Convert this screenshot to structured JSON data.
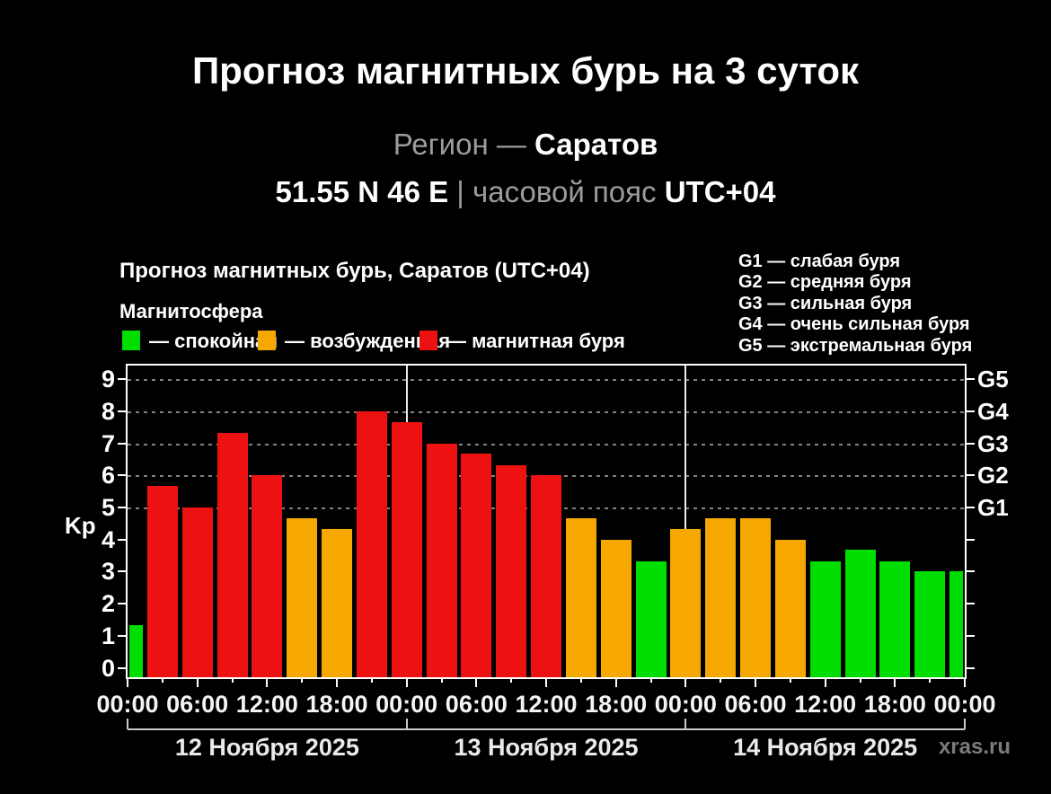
{
  "header": {
    "title": "Прогноз магнитных бурь на 3 суток",
    "region_prefix": "Регион —",
    "region_value": "Саратов",
    "coords": "51.55 N 46 E",
    "pipe": "|",
    "tz_prefix": "часовой пояс",
    "tz_value": "UTC+04"
  },
  "chart": {
    "header": "Прогноз магнитных бурь, Саратов (UTC+04)",
    "magnetosphere_label": "Магнитосфера",
    "legend": [
      {
        "state": "quiet",
        "label": "— спокойная",
        "color": "#00DD00"
      },
      {
        "state": "excited",
        "label": "— возбужденная",
        "color": "#F7A800"
      },
      {
        "state": "storm",
        "label": "— магнитная буря",
        "color": "#EE1111"
      }
    ],
    "storm_scale": [
      {
        "label": "G1 — слабая буря"
      },
      {
        "label": "G2 — средняя буря"
      },
      {
        "label": "G3 — сильная буря"
      },
      {
        "label": "G4 — очень сильная буря"
      },
      {
        "label": "G5 — экстремальная буря"
      }
    ],
    "ylabel": "Kp"
  },
  "chart_data": {
    "type": "bar",
    "title": "Прогноз магнитных бурь, Саратов (UTC+04)",
    "xlabel": "",
    "ylabel": "Kp",
    "ylim": [
      0,
      9
    ],
    "grid": "horizontal dashed at G-levels",
    "legend_position": "top-left",
    "x_hours": [
      0,
      3,
      6,
      9,
      12,
      15,
      18,
      21,
      24,
      27,
      30,
      33,
      36,
      39,
      42,
      45,
      48,
      51,
      54,
      57,
      60,
      63,
      66,
      69,
      72
    ],
    "values": [
      1.33,
      5.67,
      5.0,
      7.33,
      6.0,
      4.67,
      4.33,
      8.0,
      7.67,
      7.0,
      6.67,
      6.33,
      6.0,
      4.67,
      4.0,
      3.33,
      4.33,
      4.67,
      4.67,
      4.0,
      3.33,
      3.67,
      3.33,
      3.0,
      3.0
    ],
    "states": [
      "quiet",
      "storm",
      "storm",
      "storm",
      "storm",
      "excited",
      "excited",
      "storm",
      "storm",
      "storm",
      "storm",
      "storm",
      "storm",
      "excited",
      "excited",
      "quiet",
      "excited",
      "excited",
      "excited",
      "excited",
      "quiet",
      "quiet",
      "quiet",
      "quiet",
      "quiet"
    ],
    "state_colors": {
      "quiet": "#00DD00",
      "excited": "#F7A800",
      "storm": "#EE1111"
    },
    "y_ticks": [
      0,
      1,
      2,
      3,
      4,
      5,
      6,
      7,
      8,
      9
    ],
    "grid_levels": [
      5,
      6,
      7,
      8,
      9
    ],
    "right_axis": {
      "labels": [
        "G1",
        "G2",
        "G3",
        "G4",
        "G5"
      ],
      "kp_levels": [
        5,
        6,
        7,
        8,
        9
      ]
    },
    "x_tick_hours": [
      0,
      6,
      12,
      18,
      24,
      30,
      36,
      42,
      48,
      54,
      60,
      66,
      72
    ],
    "x_tick_labels": [
      "00:00",
      "06:00",
      "12:00",
      "18:00",
      "00:00",
      "06:00",
      "12:00",
      "18:00",
      "00:00",
      "06:00",
      "12:00",
      "18:00",
      "00:00"
    ],
    "day_boundaries_hours": [
      24,
      48
    ],
    "days": [
      "12 Ноября 2025",
      "13 Ноября 2025",
      "14 Ноября 2025"
    ]
  },
  "watermark": "xras.ru"
}
